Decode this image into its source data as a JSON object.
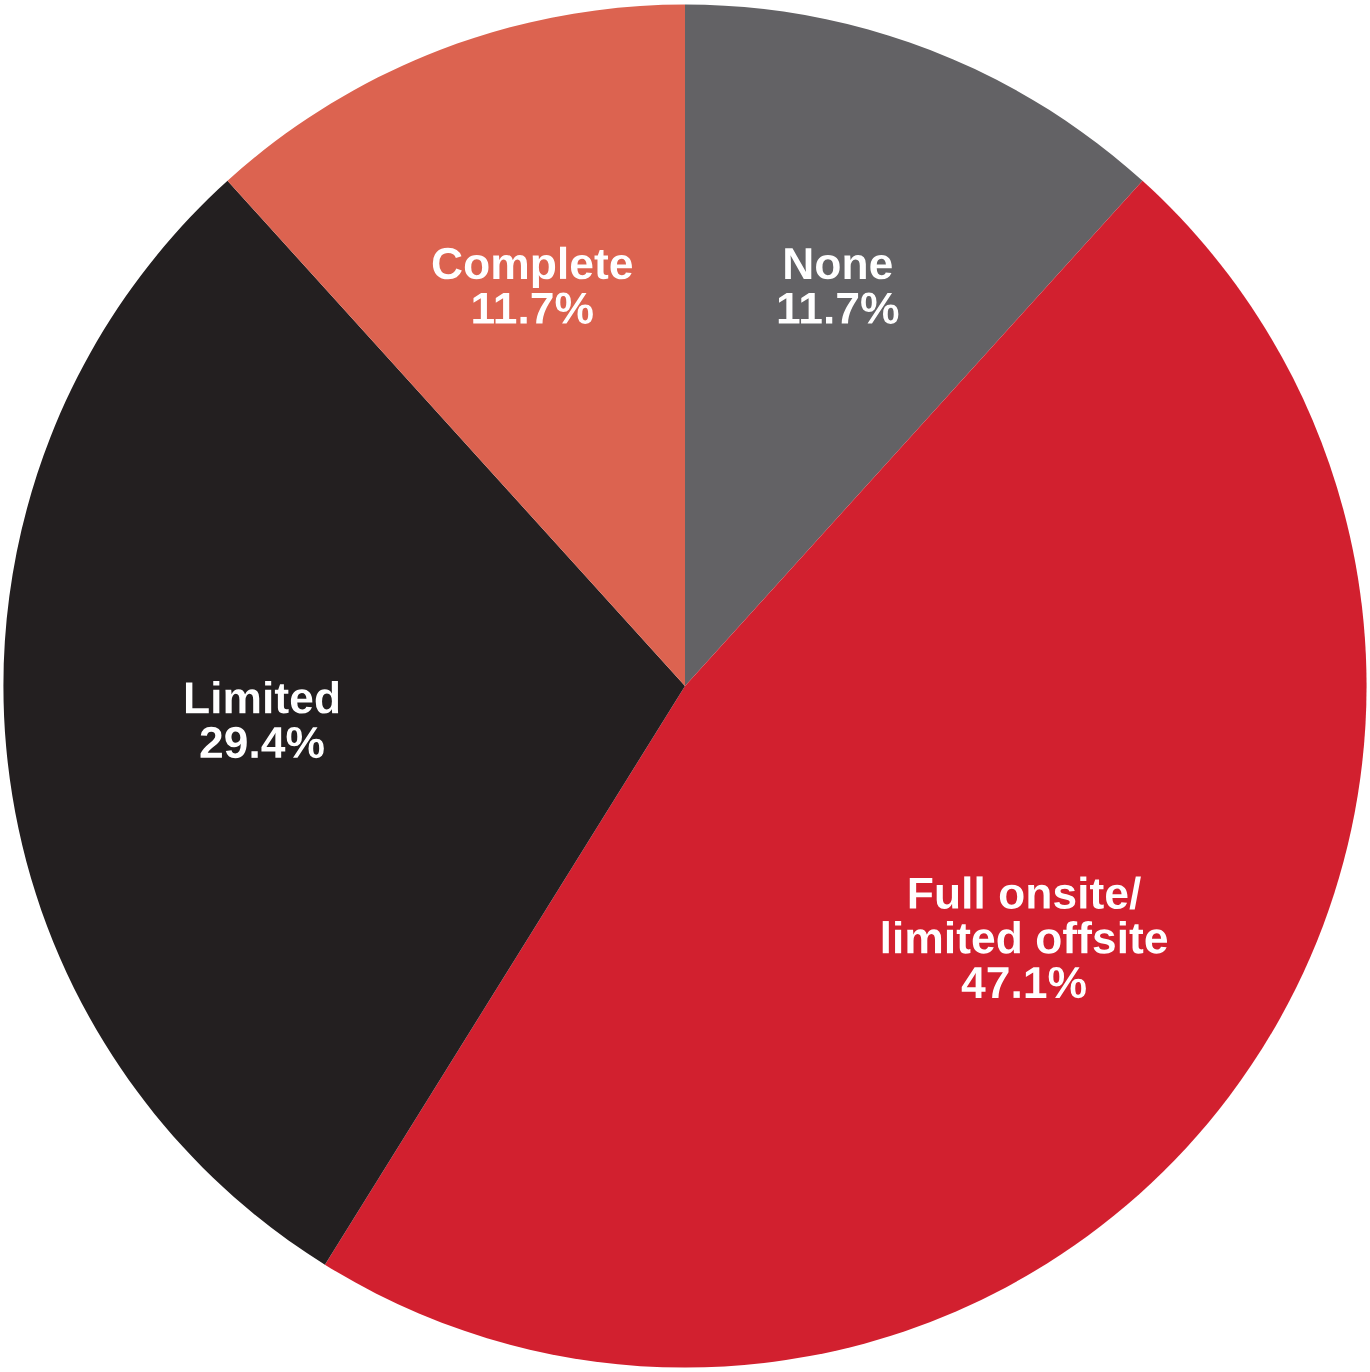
{
  "chart_data": {
    "type": "pie",
    "categories": [
      "None",
      "Full onsite/\nlimited offsite",
      "Limited",
      "Complete"
    ],
    "values": [
      11.7,
      47.1,
      29.4,
      11.7
    ],
    "value_labels": [
      "11.7%",
      "47.1%",
      "29.4%",
      "11.7%"
    ],
    "colors": [
      "#636265",
      "#d2202f",
      "#231f20",
      "#dc6350"
    ]
  }
}
